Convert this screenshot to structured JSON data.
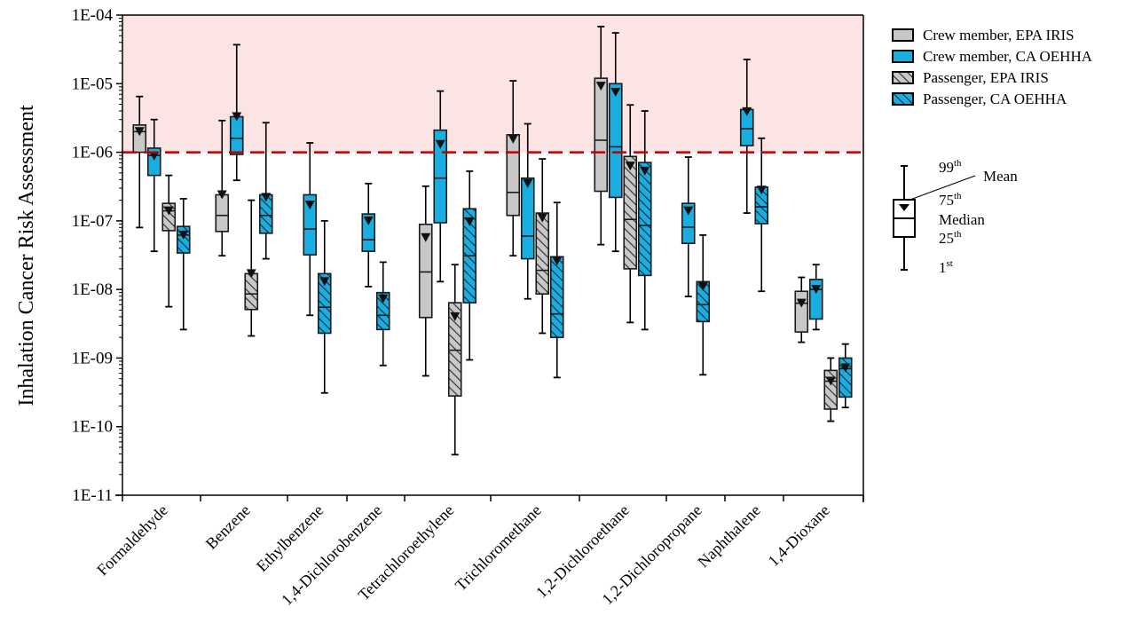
{
  "chart_data": {
    "type": "box",
    "title": "",
    "xlabel": "",
    "ylabel": "Inhalation Cancer Risk Assessment",
    "yscale": "log",
    "ylim": [
      1e-11,
      0.0001
    ],
    "ytick_labels": [
      "1E-04",
      "1E-05",
      "1E-06",
      "1E-07",
      "1E-08",
      "1E-09",
      "1E-10",
      "1E-11"
    ],
    "ytick_values": [
      0.0001,
      1e-05,
      1e-06,
      1e-07,
      1e-08,
      1e-09,
      1e-10,
      1e-11
    ],
    "threshold": {
      "value": 1e-06,
      "style": "dashed",
      "color": "#c00000",
      "shade_above_color": "#fde4e4"
    },
    "categories": [
      "Formaldehyde",
      "Benzene",
      "Ethylbenzene",
      "1,4-Dichlorobenzene",
      "Tetrachloroethylene",
      "Trichloromethane",
      "1,2-Dichloroethane",
      "1,2-Dichloropropane",
      "Naphthalene",
      "1,4-Dioxane"
    ],
    "series_styles": [
      {
        "name": "Crew member, EPA IRIS",
        "color": "#c8c8c8",
        "hatch": false
      },
      {
        "name": "Crew member, CA OEHHA",
        "color": "#1aaee0",
        "hatch": false
      },
      {
        "name": "Passenger, EPA IRIS",
        "color": "#c8c8c8",
        "hatch": true
      },
      {
        "name": "Passenger, CA OEHHA",
        "color": "#1aaee0",
        "hatch": true
      }
    ],
    "legend_position": "top-right",
    "groups": [
      {
        "category": "Formaldehyde",
        "boxes": [
          {
            "series": 0,
            "p1": 8e-08,
            "q1": 1e-06,
            "median": 2e-06,
            "q3": 2.5e-06,
            "p99": 6.5e-06,
            "mean": 2e-06
          },
          {
            "series": 1,
            "p1": 3.6e-08,
            "q1": 4.6e-07,
            "median": 9e-07,
            "q3": 1.15e-06,
            "p99": 3e-06,
            "mean": 8.8e-07
          },
          {
            "series": 2,
            "p1": 5.6e-09,
            "q1": 7.2e-08,
            "median": 1.4e-07,
            "q3": 1.8e-07,
            "p99": 4.6e-07,
            "mean": 1.4e-07
          },
          {
            "series": 3,
            "p1": 2.6e-09,
            "q1": 3.4e-08,
            "median": 6.2e-08,
            "q3": 8.3e-08,
            "p99": 2.1e-07,
            "mean": 6.2e-08
          }
        ]
      },
      {
        "category": "Benzene",
        "boxes": [
          {
            "series": 0,
            "p1": 3.1e-08,
            "q1": 7e-08,
            "median": 1.2e-07,
            "q3": 2.4e-07,
            "p99": 2.9e-06,
            "mean": 2.4e-07
          },
          {
            "series": 1,
            "p1": 3.9e-07,
            "q1": 9.3e-07,
            "median": 1.6e-06,
            "q3": 3.3e-06,
            "p99": 3.7e-05,
            "mean": 3.3e-06
          },
          {
            "series": 2,
            "p1": 2.1e-09,
            "q1": 5.1e-09,
            "median": 8.6e-09,
            "q3": 1.7e-08,
            "p99": 2e-07,
            "mean": 1.7e-08
          },
          {
            "series": 3,
            "p1": 2.8e-08,
            "q1": 6.6e-08,
            "median": 1.2e-07,
            "q3": 2.4e-07,
            "p99": 2.7e-06,
            "mean": 2.2e-07
          }
        ]
      },
      {
        "category": "Ethylbenzene",
        "boxes": [
          {
            "series": 1,
            "p1": 4.2e-09,
            "q1": 3.2e-08,
            "median": 7.6e-08,
            "q3": 2.4e-07,
            "p99": 1.37e-06,
            "mean": 1.7e-07
          },
          {
            "series": 3,
            "p1": 3.1e-10,
            "q1": 2.3e-09,
            "median": 5.5e-09,
            "q3": 1.7e-08,
            "p99": 1e-07,
            "mean": 1.3e-08
          }
        ]
      },
      {
        "category": "1,4-Dichlorobenzene",
        "boxes": [
          {
            "series": 1,
            "p1": 1.1e-08,
            "q1": 3.6e-08,
            "median": 5.3e-08,
            "q3": 1.26e-07,
            "p99": 3.5e-07,
            "mean": 1e-07
          },
          {
            "series": 3,
            "p1": 7.8e-10,
            "q1": 2.6e-09,
            "median": 4.2e-09,
            "q3": 9e-09,
            "p99": 2.5e-08,
            "mean": 7.3e-09
          }
        ]
      },
      {
        "category": "Tetrachloroethylene",
        "boxes": [
          {
            "series": 0,
            "p1": 5.5e-10,
            "q1": 3.9e-09,
            "median": 1.8e-08,
            "q3": 8.9e-08,
            "p99": 3.2e-07,
            "mean": 5.7e-08
          },
          {
            "series": 1,
            "p1": 1.3e-08,
            "q1": 9.4e-08,
            "median": 4.2e-07,
            "q3": 2.1e-06,
            "p99": 7.8e-06,
            "mean": 1.3e-06
          },
          {
            "series": 2,
            "p1": 3.9e-11,
            "q1": 2.8e-10,
            "median": 1.3e-09,
            "q3": 6.4e-09,
            "p99": 2.3e-08,
            "mean": 4e-09
          },
          {
            "series": 3,
            "p1": 9.4e-10,
            "q1": 6.4e-09,
            "median": 3.1e-08,
            "q3": 1.5e-07,
            "p99": 5.3e-07,
            "mean": 9.7e-08
          }
        ]
      },
      {
        "category": "Trichloromethane",
        "boxes": [
          {
            "series": 0,
            "p1": 3.1e-08,
            "q1": 1.2e-07,
            "median": 2.6e-07,
            "q3": 1.8e-06,
            "p99": 1.1e-05,
            "mean": 1.55e-06
          },
          {
            "series": 1,
            "p1": 7.3e-09,
            "q1": 2.8e-08,
            "median": 6e-08,
            "q3": 4.2e-07,
            "p99": 2.6e-06,
            "mean": 3.5e-07
          },
          {
            "series": 2,
            "p1": 2.3e-09,
            "q1": 8.6e-09,
            "median": 1.9e-08,
            "q3": 1.3e-07,
            "p99": 8e-07,
            "mean": 1.1e-07
          },
          {
            "series": 3,
            "p1": 5.2e-10,
            "q1": 2e-09,
            "median": 4.4e-09,
            "q3": 3e-08,
            "p99": 1.85e-07,
            "mean": 2.6e-08
          }
        ]
      },
      {
        "category": "1,2-Dichloroethane",
        "boxes": [
          {
            "series": 0,
            "p1": 4.5e-08,
            "q1": 2.7e-07,
            "median": 1.5e-06,
            "q3": 1.2e-05,
            "p99": 6.8e-05,
            "mean": 9.2e-06
          },
          {
            "series": 1,
            "p1": 3.6e-08,
            "q1": 2.2e-07,
            "median": 1.2e-06,
            "q3": 1e-05,
            "p99": 5.5e-05,
            "mean": 7.5e-06
          },
          {
            "series": 2,
            "p1": 3.3e-09,
            "q1": 2e-08,
            "median": 1.05e-07,
            "q3": 8.7e-07,
            "p99": 4.9e-06,
            "mean": 6.3e-07
          },
          {
            "series": 3,
            "p1": 2.6e-09,
            "q1": 1.6e-08,
            "median": 8.6e-08,
            "q3": 7.1e-07,
            "p99": 4e-06,
            "mean": 5.3e-07
          }
        ]
      },
      {
        "category": "1,2-Dichloropropane",
        "boxes": [
          {
            "series": 1,
            "p1": 7.9e-09,
            "q1": 4.7e-08,
            "median": 8.1e-08,
            "q3": 1.8e-07,
            "p99": 8.5e-07,
            "mean": 1.4e-07
          },
          {
            "series": 3,
            "p1": 5.7e-10,
            "q1": 3.4e-09,
            "median": 6e-09,
            "q3": 1.3e-08,
            "p99": 6.2e-08,
            "mean": 1.1e-08
          }
        ]
      },
      {
        "category": "Naphthalene",
        "boxes": [
          {
            "series": 1,
            "p1": 1.3e-07,
            "q1": 1.25e-06,
            "median": 2.2e-06,
            "q3": 4.2e-06,
            "p99": 2.25e-05,
            "mean": 3.9e-06
          },
          {
            "series": 3,
            "p1": 9.4e-09,
            "q1": 9.1e-08,
            "median": 1.6e-07,
            "q3": 3.1e-07,
            "p99": 1.6e-06,
            "mean": 2.8e-07
          }
        ]
      },
      {
        "category": "1,4-Dioxane",
        "boxes": [
          {
            "series": 0,
            "p1": 1.7e-09,
            "q1": 2.4e-09,
            "median": 6.3e-09,
            "q3": 9.4e-09,
            "p99": 1.5e-08,
            "mean": 6.3e-09
          },
          {
            "series": 1,
            "p1": 2.6e-09,
            "q1": 3.7e-09,
            "median": 1e-08,
            "q3": 1.4e-08,
            "p99": 2.3e-08,
            "mean": 1e-08
          },
          {
            "series": 2,
            "p1": 1.2e-10,
            "q1": 1.8e-10,
            "median": 4.6e-10,
            "q3": 6.6e-10,
            "p99": 1e-09,
            "mean": 4.6e-10
          },
          {
            "series": 3,
            "p1": 1.9e-10,
            "q1": 2.7e-10,
            "median": 7e-10,
            "q3": 1e-09,
            "p99": 1.6e-09,
            "mean": 7.2e-10
          }
        ]
      }
    ],
    "key": {
      "labels": {
        "p99": "99",
        "p99_sup": "th",
        "mean": "Mean",
        "q3": "75",
        "q3_sup": "th",
        "median": "Median",
        "q1": "25",
        "q1_sup": "th",
        "p1": "1",
        "p1_sup": "st"
      }
    }
  }
}
